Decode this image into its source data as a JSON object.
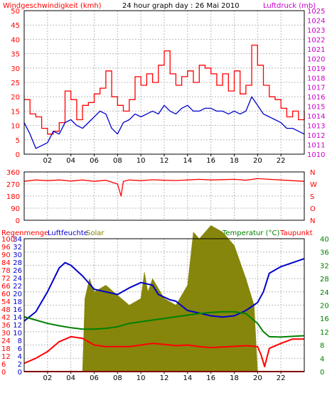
{
  "chart_data": [
    {
      "type": "line",
      "panel": "wind-pressure",
      "title": "24 hour graph day : 26 Mai 2010",
      "left_label": "Windgeschwindigkeit (kmh)",
      "right_label": "Luftdruck (mb)",
      "yleft_ticks": [
        "0",
        "5",
        "10",
        "15",
        "20",
        "25",
        "30",
        "35",
        "40",
        "45",
        "50"
      ],
      "yright_ticks": [
        "1010",
        "1011",
        "1012",
        "1013",
        "1014",
        "1015",
        "1016",
        "1017",
        "1018",
        "1019",
        "1020",
        "1021",
        "1022",
        "1023",
        "1024",
        "1025"
      ],
      "x_ticks": [
        "02",
        "04",
        "06",
        "08",
        "10",
        "12",
        "14",
        "16",
        "18",
        "20",
        "22"
      ],
      "ylim_left": [
        0,
        50
      ],
      "series": [
        {
          "name": "Windboen",
          "color": "#ff0000",
          "x": [
            0,
            0.5,
            1,
            1.5,
            2,
            2.5,
            3,
            3.5,
            4,
            4.5,
            5,
            5.5,
            6,
            6.5,
            7,
            7.5,
            8,
            8.5,
            9,
            9.5,
            10,
            10.5,
            11,
            11.5,
            12,
            12.5,
            13,
            13.5,
            14,
            14.5,
            15,
            15.5,
            16,
            16.5,
            17,
            17.5,
            18,
            18.5,
            19,
            19.5,
            20,
            20.5,
            21,
            21.5,
            22,
            22.5,
            23,
            23.5,
            24
          ],
          "y": [
            19,
            14,
            13,
            9,
            7,
            8,
            11,
            22,
            19,
            12,
            17,
            18,
            21,
            23,
            29,
            20,
            17,
            15,
            19,
            27,
            24,
            28,
            25,
            31,
            36,
            28,
            24,
            27,
            29,
            25,
            31,
            30,
            28,
            24,
            28,
            22,
            29,
            21,
            24,
            38,
            31,
            24,
            20,
            19,
            16,
            13,
            15,
            12,
            15
          ]
        },
        {
          "name": "Windgeschwindigkeit",
          "color": "#0000cc",
          "x": [
            0,
            0.5,
            1,
            1.5,
            2,
            2.5,
            3,
            3.5,
            4,
            4.5,
            5,
            5.5,
            6,
            6.5,
            7,
            7.5,
            8,
            8.5,
            9,
            9.5,
            10,
            10.5,
            11,
            11.5,
            12,
            12.5,
            13,
            13.5,
            14,
            14.5,
            15,
            15.5,
            16,
            16.5,
            17,
            17.5,
            18,
            18.5,
            19,
            19.5,
            20,
            20.5,
            21,
            21.5,
            22,
            22.5,
            23,
            23.5,
            24
          ],
          "y": [
            11,
            7,
            2,
            3,
            4,
            8,
            7,
            11,
            12,
            10,
            9,
            11,
            13,
            15,
            14,
            9,
            7,
            11,
            12,
            14,
            13,
            14,
            15,
            14,
            17,
            15,
            14,
            16,
            17,
            15,
            15,
            16,
            16,
            15,
            15,
            14,
            15,
            14,
            15,
            20,
            17,
            14,
            13,
            12,
            11,
            9,
            9,
            8,
            7
          ]
        }
      ]
    },
    {
      "type": "line",
      "panel": "wind-direction",
      "y_ticks": [
        "360",
        "270",
        "180",
        "90",
        "0"
      ],
      "right_ticks": [
        "N",
        "W",
        "S",
        "O",
        "N"
      ],
      "ylim": [
        0,
        360
      ],
      "series": [
        {
          "name": "Windrichtung",
          "color": "#ff0000",
          "x": [
            0,
            1,
            2,
            3,
            4,
            5,
            6,
            7,
            8,
            8.3,
            8.5,
            9,
            10,
            11,
            12,
            13,
            14,
            15,
            16,
            17,
            18,
            19,
            20,
            21,
            22,
            23,
            24
          ],
          "y": [
            290,
            300,
            295,
            300,
            292,
            300,
            290,
            298,
            270,
            180,
            290,
            300,
            295,
            302,
            298,
            296,
            300,
            305,
            300,
            303,
            305,
            298,
            310,
            305,
            300,
            295,
            290
          ]
        }
      ]
    },
    {
      "type": "line",
      "panel": "humidity-temperature-solar",
      "labels": {
        "rain": "Regenmenge",
        "humidity": "Luftfeuchte",
        "solar": "Solar",
        "temperature": "Temperatur (°C)",
        "dewpoint": "Taupunkt"
      },
      "yleft_ticks": [
        "0",
        "6",
        "12",
        "18",
        "24",
        "30",
        "36",
        "42",
        "48",
        "54",
        "60",
        "66",
        "72",
        "78",
        "84",
        "90",
        "96",
        "100"
      ],
      "yleft2_ticks": [
        "0",
        "2",
        "4",
        "6",
        "8",
        "10",
        "12",
        "14",
        "16",
        "18",
        "20",
        "22",
        "24",
        "26",
        "28",
        "30",
        "32",
        "34"
      ],
      "yright_ticks": [
        "0",
        "4",
        "8",
        "12",
        "16",
        "20",
        "24",
        "28",
        "32",
        "36",
        "40"
      ],
      "x_ticks": [
        "02",
        "04",
        "06",
        "08",
        "10",
        "12",
        "14",
        "16",
        "18",
        "20",
        "22"
      ],
      "ylim_left": [
        0,
        100
      ],
      "ylim_right": [
        0,
        40
      ],
      "series": [
        {
          "name": "Luftfeuchte",
          "color": "#0000cc",
          "x": [
            0,
            1,
            2,
            3,
            3.5,
            4,
            4.5,
            5,
            6,
            7,
            8,
            9,
            10,
            11,
            11.5,
            12,
            12.5,
            13,
            14,
            15,
            16,
            17,
            18,
            19,
            20,
            20.5,
            21,
            22,
            23,
            24
          ],
          "y": [
            38,
            45,
            60,
            78,
            82,
            80,
            76,
            72,
            62,
            60,
            58,
            63,
            67,
            65,
            58,
            56,
            54,
            53,
            46,
            44,
            42,
            41,
            42,
            46,
            52,
            60,
            74,
            79,
            82,
            85
          ]
        },
        {
          "name": "Temperatur",
          "color": "#008000",
          "x": [
            0,
            1,
            2,
            3,
            4,
            5,
            6,
            7,
            8,
            9,
            10,
            11,
            12,
            13,
            14,
            15,
            16,
            17,
            18,
            19,
            20,
            20.5,
            21,
            22,
            23,
            24
          ],
          "y": [
            16.5,
            15.5,
            14.5,
            13.8,
            13.2,
            12.8,
            12.8,
            13,
            13.5,
            14.5,
            15,
            15.5,
            16,
            16.5,
            17,
            17.5,
            17.8,
            18,
            18,
            17.5,
            14.5,
            12,
            10.5,
            10.4,
            10.6,
            10.8
          ],
          "axis": "right"
        },
        {
          "name": "Taupunkt",
          "color": "#ff0000",
          "x": [
            0,
            1,
            2,
            3,
            4,
            5,
            6,
            7,
            8,
            9,
            10,
            11,
            12,
            13,
            14,
            15,
            16,
            17,
            18,
            19,
            20,
            20.3,
            20.6,
            21,
            22,
            23,
            24
          ],
          "y": [
            2.5,
            4,
            6,
            9,
            10.5,
            10,
            8,
            7.5,
            7.5,
            7.5,
            8,
            8.5,
            8.2,
            7.8,
            8,
            7.5,
            7.2,
            7.4,
            7.6,
            7.8,
            7.5,
            5,
            1.5,
            7,
            8.5,
            9.8,
            9.8
          ],
          "axis": "right"
        },
        {
          "name": "Solar",
          "color": "#808000",
          "x": [
            0,
            5,
            5.2,
            5.6,
            6,
            7,
            8,
            9,
            10,
            10.3,
            10.6,
            11,
            12,
            13,
            14,
            14.5,
            15,
            16,
            17,
            18,
            19,
            19.7,
            20,
            24
          ],
          "y": [
            0,
            0,
            22,
            28,
            24,
            26,
            23,
            20,
            22,
            30,
            24,
            28,
            22,
            20,
            26,
            42,
            40,
            44,
            42,
            38,
            28,
            20,
            0,
            0
          ],
          "axis": "right"
        },
        {
          "name": "Regenmenge",
          "color": "#ff0000",
          "x": [
            0,
            20,
            20.5,
            24
          ],
          "y": [
            0,
            0,
            0,
            0
          ]
        }
      ]
    }
  ]
}
